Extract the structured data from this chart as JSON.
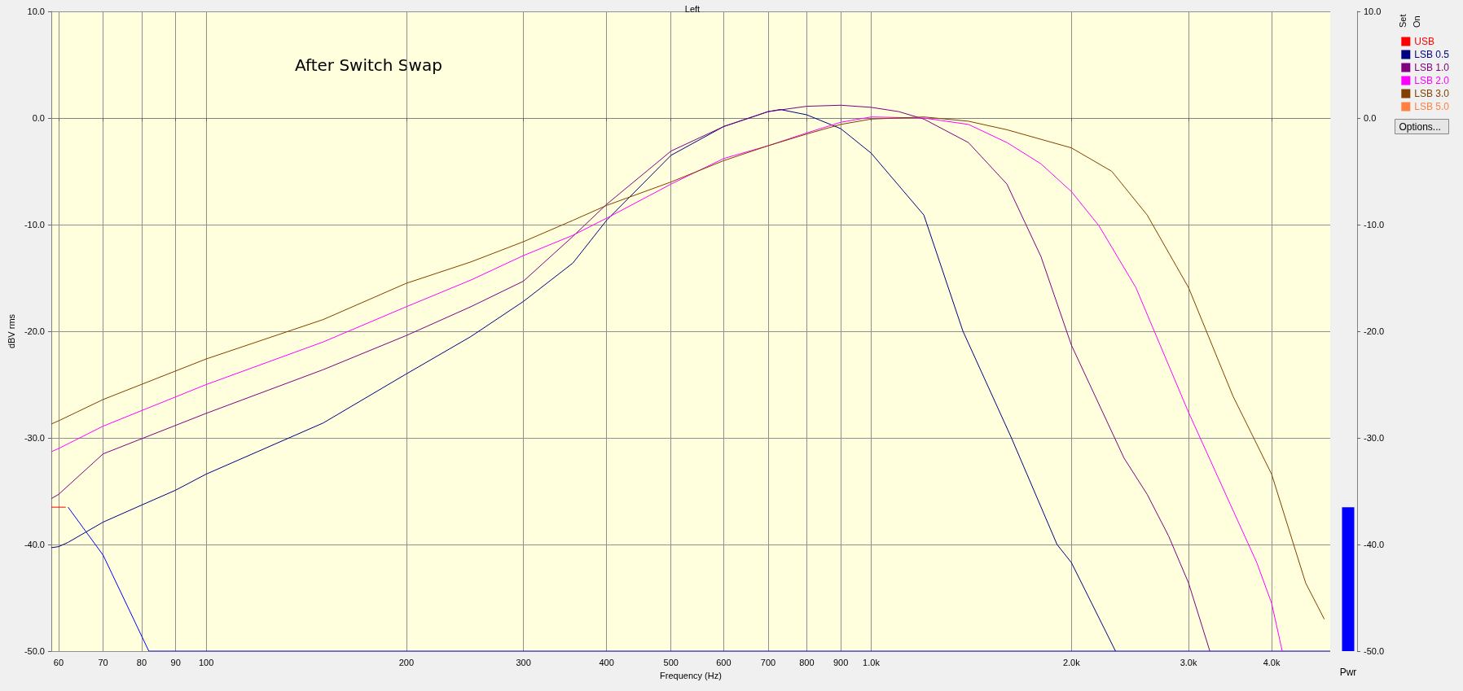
{
  "chart_data": [
    {
      "type": "line",
      "title": "Left",
      "xlabel": "Frequency (Hz)",
      "ylabel": "dBV rms",
      "annotations": [
        "After Switch Swap",
        "Set",
        "On",
        "Options..."
      ],
      "log": "x",
      "grid": true,
      "legend": "right",
      "xlim": [
        58.5,
        4900
      ],
      "ylim": [
        -50,
        10
      ],
      "xticks": [
        60,
        70,
        80,
        90,
        100,
        200,
        300,
        400,
        500,
        600,
        700,
        800,
        900,
        {
          "value": 1000,
          "label": "1.0k"
        },
        {
          "value": 2000,
          "label": "2.0k"
        },
        {
          "value": 3000,
          "label": "3.0k"
        },
        {
          "value": 4000,
          "label": "4.0k"
        }
      ],
      "yticks": [
        {
          "value": -50,
          "label": "-50.0"
        },
        {
          "value": -40,
          "label": "-40.0"
        },
        {
          "value": -30,
          "label": "-30.0"
        },
        {
          "value": -20,
          "label": "-20.0"
        },
        {
          "value": -10,
          "label": "-10.0"
        },
        {
          "value": 0,
          "label": "0.0"
        },
        {
          "value": 10,
          "label": "10.0"
        }
      ],
      "series": [
        {
          "color": "#0000ff",
          "x": [
            62,
            70,
            82,
            4900
          ],
          "values": [
            -36.5,
            -41.0,
            -50.0,
            -50.0
          ]
        },
        {
          "name": "USB",
          "color": "#ff0000",
          "x": [
            58.5,
            61.5
          ],
          "values": [
            -36.5,
            -36.5
          ]
        },
        {
          "name": "LSB 0.5",
          "color": "#000080",
          "x": [
            58.5,
            60,
            62,
            70,
            80,
            90,
            100,
            150,
            200,
            250,
            300,
            356,
            400,
            500,
            600,
            700,
            730,
            800,
            900,
            1000,
            1200,
            1374,
            1625,
            1903,
            2000,
            2330
          ],
          "values": [
            -40.3,
            -40.2,
            -39.8,
            -37.9,
            -36.3,
            -34.9,
            -33.4,
            -28.6,
            -24.0,
            -20.5,
            -17.2,
            -13.6,
            -9.6,
            -3.5,
            -0.8,
            0.6,
            0.8,
            0.3,
            -1.0,
            -3.3,
            -9.1,
            -20.0,
            -30.0,
            -40.0,
            -41.7,
            -50.0
          ]
        },
        {
          "name": "LSB 1.0",
          "color": "#800080",
          "x": [
            58.5,
            60,
            70,
            100,
            150,
            200,
            250,
            300,
            356,
            400,
            500,
            600,
            700,
            800,
            900,
            1000,
            1100,
            1200,
            1400,
            1600,
            1800,
            2000,
            2400,
            2600,
            2800,
            3000,
            3230
          ],
          "values": [
            -35.7,
            -35.3,
            -31.5,
            -27.7,
            -23.6,
            -20.4,
            -17.7,
            -15.3,
            -11.1,
            -8.1,
            -3.1,
            -0.8,
            0.6,
            1.1,
            1.2,
            1.0,
            0.6,
            -0.1,
            -2.3,
            -6.2,
            -13.0,
            -21.3,
            -31.9,
            -35.3,
            -39.2,
            -43.6,
            -50.0
          ]
        },
        {
          "name": "LSB 2.0",
          "color": "#ff00ff",
          "x": [
            58.5,
            60,
            70,
            100,
            150,
            200,
            250,
            300,
            356,
            400,
            500,
            600,
            700,
            800,
            900,
            1000,
            1200,
            1400,
            1600,
            1800,
            2000,
            2200,
            2500,
            3000,
            3500,
            3800,
            4000,
            4150
          ],
          "values": [
            -31.3,
            -31.0,
            -28.9,
            -25.0,
            -21.0,
            -17.7,
            -15.2,
            -12.9,
            -11.0,
            -9.4,
            -6.2,
            -3.8,
            -2.6,
            -1.4,
            -0.4,
            0.1,
            0.0,
            -0.6,
            -2.3,
            -4.3,
            -6.9,
            -10.1,
            -15.9,
            -27.6,
            -36.8,
            -41.7,
            -45.5,
            -50.0
          ]
        },
        {
          "name": "LSB 3.0",
          "color": "#804000",
          "x": [
            58.5,
            60,
            70,
            100,
            150,
            200,
            250,
            300,
            356,
            400,
            500,
            600,
            700,
            800,
            900,
            1000,
            1200,
            1400,
            1600,
            2000,
            2300,
            2600,
            3000,
            3500,
            4000,
            4500,
            4800
          ],
          "values": [
            -28.7,
            -28.4,
            -26.4,
            -22.6,
            -18.9,
            -15.5,
            -13.5,
            -11.6,
            -9.6,
            -8.2,
            -6.0,
            -4.0,
            -2.6,
            -1.5,
            -0.6,
            -0.1,
            0.1,
            -0.3,
            -1.1,
            -2.8,
            -5.0,
            -9.1,
            -15.9,
            -26.1,
            -33.4,
            -43.6,
            -47.0
          ]
        },
        {
          "name": "LSB 5.0",
          "color": "#ff8040"
        }
      ]
    },
    {
      "type": "bar",
      "categories": [
        "Pwr"
      ],
      "values": [
        13.5
      ],
      "base": [
        -50
      ],
      "color": "#0000ff",
      "ylim": [
        -50,
        10
      ],
      "yticks": [
        {
          "value": -50,
          "label": "-50.0"
        },
        {
          "value": -40,
          "label": "-40.0"
        },
        {
          "value": -30,
          "label": "-30.0"
        },
        {
          "value": -20,
          "label": "-20.0"
        },
        {
          "value": -10,
          "label": "-10.0"
        },
        {
          "value": 0,
          "label": "0.0"
        },
        {
          "value": 10,
          "label": "10.0"
        }
      ]
    }
  ]
}
